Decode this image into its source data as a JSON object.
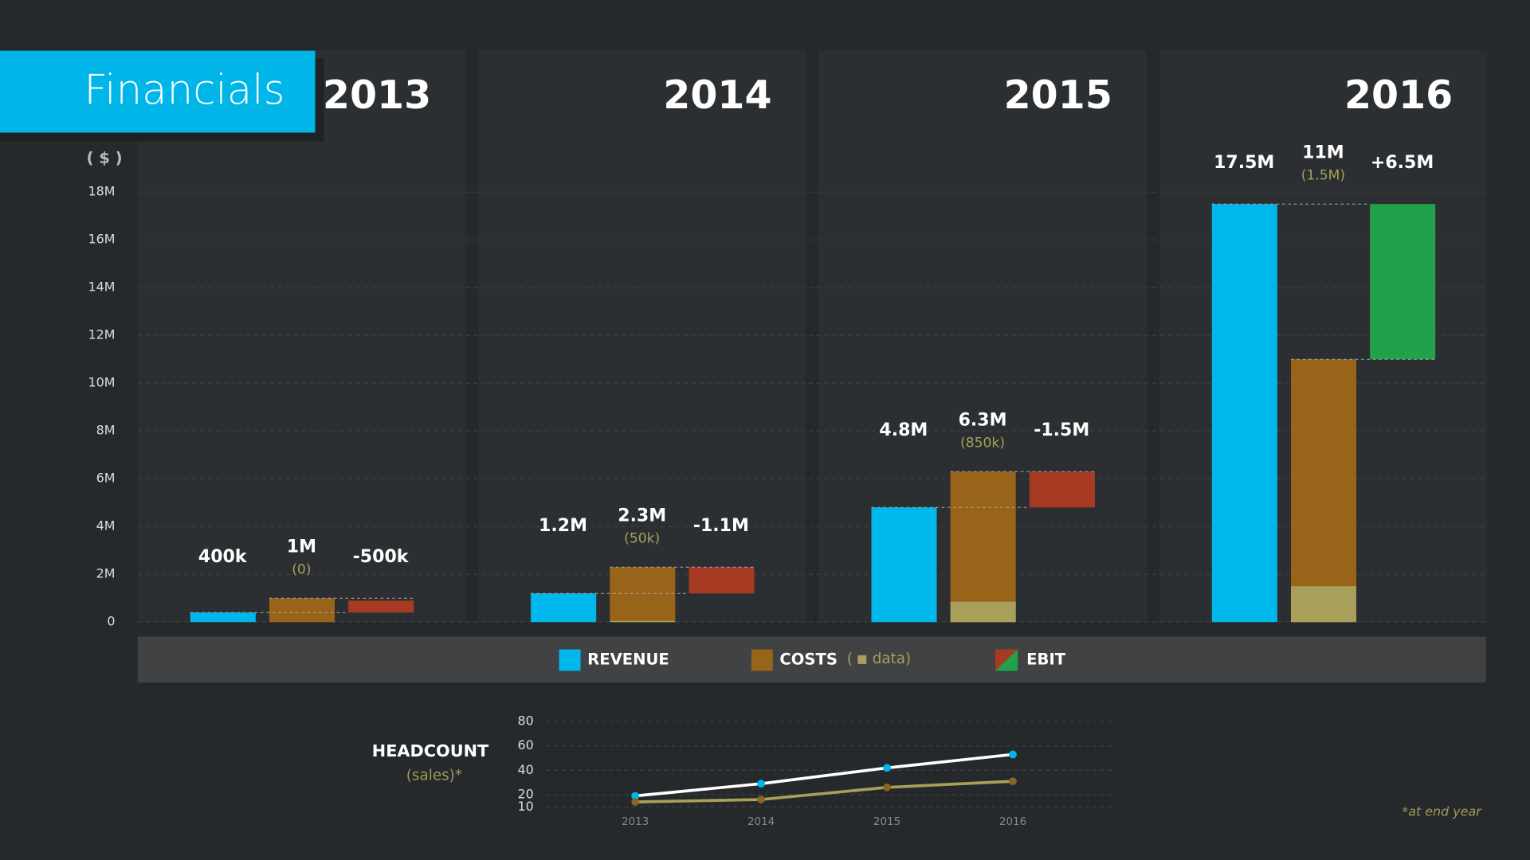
{
  "chart_data": [
    {
      "type": "waterfall",
      "title": "Financials",
      "y_label": "( $ )",
      "categories": [
        "2013",
        "2014",
        "2015",
        "2016"
      ],
      "series": [
        {
          "name": "REVENUE",
          "color": "#00b7eb",
          "values": [
            400000,
            1200000,
            4800000,
            17500000
          ],
          "value_labels": [
            "400k",
            "1.2M",
            "4.8M",
            "17.5M"
          ]
        },
        {
          "name": "COSTS",
          "color": "#98641a",
          "values": [
            1000000,
            2300000,
            6300000,
            11000000
          ],
          "value_labels": [
            "1M",
            "2.3M",
            "6.3M",
            "11M"
          ]
        },
        {
          "name": "data",
          "color": "#a8a05a",
          "values": [
            0,
            50000,
            850000,
            1500000
          ],
          "value_labels": [
            "(0)",
            "(50k)",
            "(850k)",
            "(1.5M)"
          ]
        },
        {
          "name": "EBIT",
          "color": "#a63a22",
          "positive_color": "#21a24a",
          "values": [
            -500000,
            -1100000,
            -1500000,
            6500000
          ],
          "value_labels": [
            "-500k",
            "-1.1M",
            "-1.5M",
            "+6.5M"
          ]
        }
      ],
      "legend_brackets": [
        "(",
        "data)"
      ],
      "ylim": [
        0,
        18000000
      ],
      "yticks": [
        0,
        {
          "value": 2000000,
          "label": "2M"
        },
        {
          "value": 4000000,
          "label": "4M"
        },
        {
          "value": 6000000,
          "label": "6M"
        },
        {
          "value": 8000000,
          "label": "8M"
        },
        {
          "value": 10000000,
          "label": "10M"
        },
        {
          "value": 12000000,
          "label": "12M"
        },
        {
          "value": 14000000,
          "label": "14M"
        },
        {
          "value": 16000000,
          "label": "16M"
        },
        {
          "value": 18000000,
          "label": "18M"
        }
      ],
      "grid": true
    },
    {
      "type": "line",
      "title": "HEADCOUNT",
      "subtitle": "(sales)*",
      "note": "*at end year",
      "categories": [
        "2013",
        "2014",
        "2015",
        "2016"
      ],
      "series": [
        {
          "color": "#ffffff",
          "marker_color": "#00b7eb",
          "values": [
            19,
            29,
            42,
            53
          ]
        },
        {
          "color": "#a8a05a",
          "marker_color": "#8a6420",
          "values": [
            14,
            16,
            26,
            31
          ]
        }
      ],
      "ylim": [
        0,
        80
      ],
      "yticks": [
        10,
        20,
        40,
        60,
        80
      ],
      "grid": true
    }
  ]
}
